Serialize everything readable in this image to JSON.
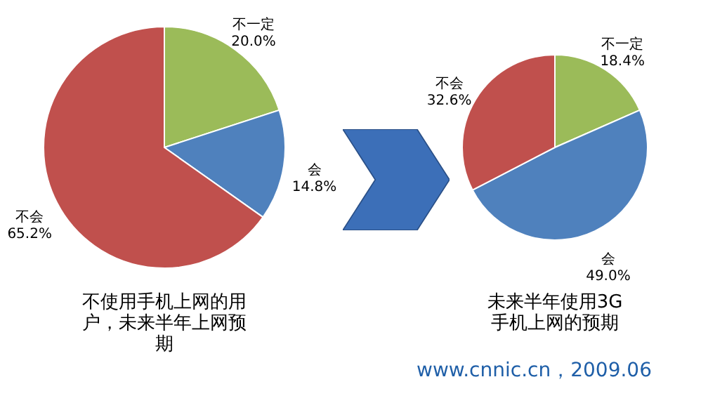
{
  "chart_data": [
    {
      "type": "pie",
      "title": "不使用手机上网的用户，未来半年上网预期",
      "categories": [
        "不一定",
        "会",
        "不会"
      ],
      "values": [
        20.0,
        14.8,
        65.2
      ],
      "colors": [
        "#9bbb59",
        "#4f81bd",
        "#c0504d"
      ],
      "value_labels": [
        "20.0%",
        "14.8%",
        "65.2%"
      ]
    },
    {
      "type": "pie",
      "title": "未来半年使用3G手机上网的预期",
      "categories": [
        "不一定",
        "会",
        "不会"
      ],
      "values": [
        18.4,
        49.0,
        32.6
      ],
      "colors": [
        "#9bbb59",
        "#4f81bd",
        "#c0504d"
      ],
      "value_labels": [
        "18.4%",
        "49.0%",
        "32.6%"
      ],
      "annotations": [
        "www.cnnic.cn，2009.06"
      ]
    }
  ]
}
